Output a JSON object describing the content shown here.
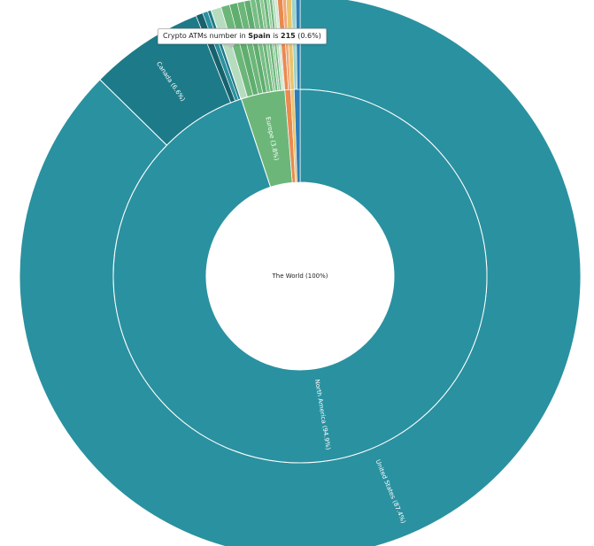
{
  "chart_data": {
    "type": "sunburst",
    "root": {
      "label": "The World (100%)",
      "value": 100
    },
    "inner_ring": [
      {
        "name": "North America",
        "label": "North America (94.9%)",
        "value": 94.9,
        "color": "#2a91a0"
      },
      {
        "name": "Europe",
        "label": "Europe (3.8%)",
        "value": 3.8,
        "color": "#6db67a"
      },
      {
        "name": "Europe-other-1",
        "label": "",
        "value": 0.5,
        "color": "#ea8a50"
      },
      {
        "name": "Asia-small",
        "label": "",
        "value": 0.3,
        "color": "#e9c46a"
      },
      {
        "name": "Other-small",
        "label": "",
        "value": 0.5,
        "color": "#2c7fb8"
      }
    ],
    "outer_ring": [
      {
        "name": "United States",
        "label": "United States (87.4%)",
        "value": 87.4,
        "color": "#2a91a0"
      },
      {
        "name": "Canada",
        "label": "Canada (6.6%)",
        "value": 6.6,
        "color": "#1d7b89"
      },
      {
        "name": "NA-other-1",
        "label": "",
        "value": 0.4,
        "color": "#17616c"
      },
      {
        "name": "NA-other-2",
        "label": "",
        "value": 0.3,
        "color": "#2a91a0"
      },
      {
        "name": "NA-other-3",
        "label": "",
        "value": 0.2,
        "color": "#1d7b89"
      },
      {
        "name": "Spain",
        "label": "",
        "value": 0.6,
        "color": "#b6dcbf"
      },
      {
        "name": "EU-a",
        "label": "",
        "value": 0.5,
        "color": "#6db67a"
      },
      {
        "name": "EU-b",
        "label": "",
        "value": 0.45,
        "color": "#5fae6e"
      },
      {
        "name": "EU-c",
        "label": "",
        "value": 0.4,
        "color": "#6db67a"
      },
      {
        "name": "EU-d",
        "label": "",
        "value": 0.35,
        "color": "#5fae6e"
      },
      {
        "name": "EU-e",
        "label": "",
        "value": 0.3,
        "color": "#79bd86"
      },
      {
        "name": "EU-f",
        "label": "",
        "value": 0.25,
        "color": "#6db67a"
      },
      {
        "name": "EU-g",
        "label": "",
        "value": 0.2,
        "color": "#8ac895"
      },
      {
        "name": "EU-h",
        "label": "",
        "value": 0.2,
        "color": "#6db67a"
      },
      {
        "name": "EU-i",
        "label": "",
        "value": 0.15,
        "color": "#9ad0a3"
      },
      {
        "name": "EU-j",
        "label": "",
        "value": 0.15,
        "color": "#6db67a"
      },
      {
        "name": "EU-k",
        "label": "",
        "value": 0.15,
        "color": "#b6dcbf"
      },
      {
        "name": "EU-l",
        "label": "",
        "value": 0.15,
        "color": "#cfe7d4"
      },
      {
        "name": "OT-a",
        "label": "",
        "value": 0.3,
        "color": "#ea8a50"
      },
      {
        "name": "OT-b",
        "label": "",
        "value": 0.2,
        "color": "#f1a878"
      },
      {
        "name": "OT-c",
        "label": "",
        "value": 0.3,
        "color": "#e9c46a"
      },
      {
        "name": "OT-d",
        "label": "",
        "value": 0.25,
        "color": "#9fd3c7"
      },
      {
        "name": "OT-e",
        "label": "",
        "value": 0.25,
        "color": "#2c7fb8"
      }
    ]
  },
  "tooltip": {
    "prefix": "Crypto ATMs number in ",
    "country": "Spain",
    "middle": " is ",
    "value": "215",
    "suffix": " (0.6%)"
  }
}
